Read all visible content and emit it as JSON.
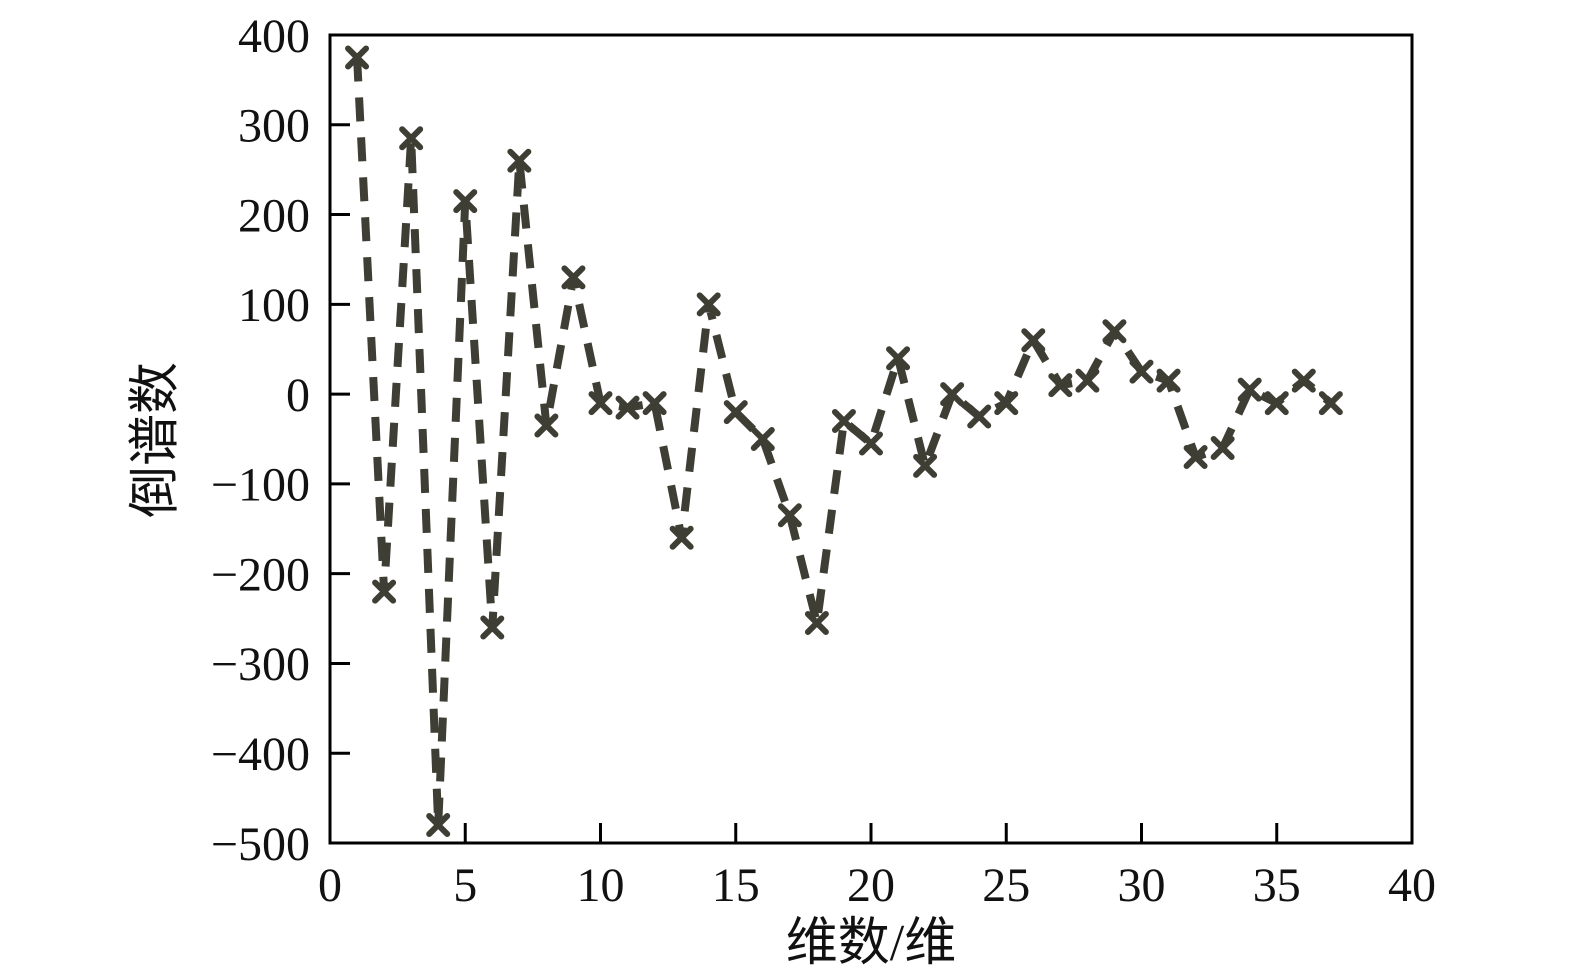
{
  "chart_data": {
    "type": "line",
    "title": "",
    "xlabel": "维数/维",
    "ylabel": "倒谱数",
    "xlim": [
      0,
      40
    ],
    "ylim": [
      -500,
      400
    ],
    "xticks": [
      0,
      5,
      10,
      15,
      20,
      25,
      30,
      35,
      40
    ],
    "yticks": [
      400,
      300,
      200,
      100,
      0,
      -100,
      -200,
      -300,
      -400,
      -500
    ],
    "grid": false,
    "legend": "none",
    "line_style": "dashed",
    "marker": "x",
    "line_color": "#3e3e34",
    "axis_color": "#000000",
    "x": [
      1,
      2,
      3,
      4,
      5,
      6,
      7,
      8,
      9,
      10,
      11,
      12,
      13,
      14,
      15,
      16,
      17,
      18,
      19,
      20,
      21,
      22,
      23,
      24,
      25,
      26,
      27,
      28,
      29,
      30,
      31,
      32,
      33,
      34,
      35,
      36,
      37
    ],
    "y": [
      375,
      -220,
      285,
      -480,
      215,
      -260,
      260,
      -35,
      130,
      -10,
      -15,
      -10,
      -160,
      100,
      -20,
      -50,
      -135,
      -255,
      -30,
      -55,
      40,
      -80,
      0,
      -25,
      -10,
      60,
      10,
      15,
      70,
      25,
      15,
      -70,
      -60,
      5,
      -10,
      15,
      -10
    ]
  }
}
